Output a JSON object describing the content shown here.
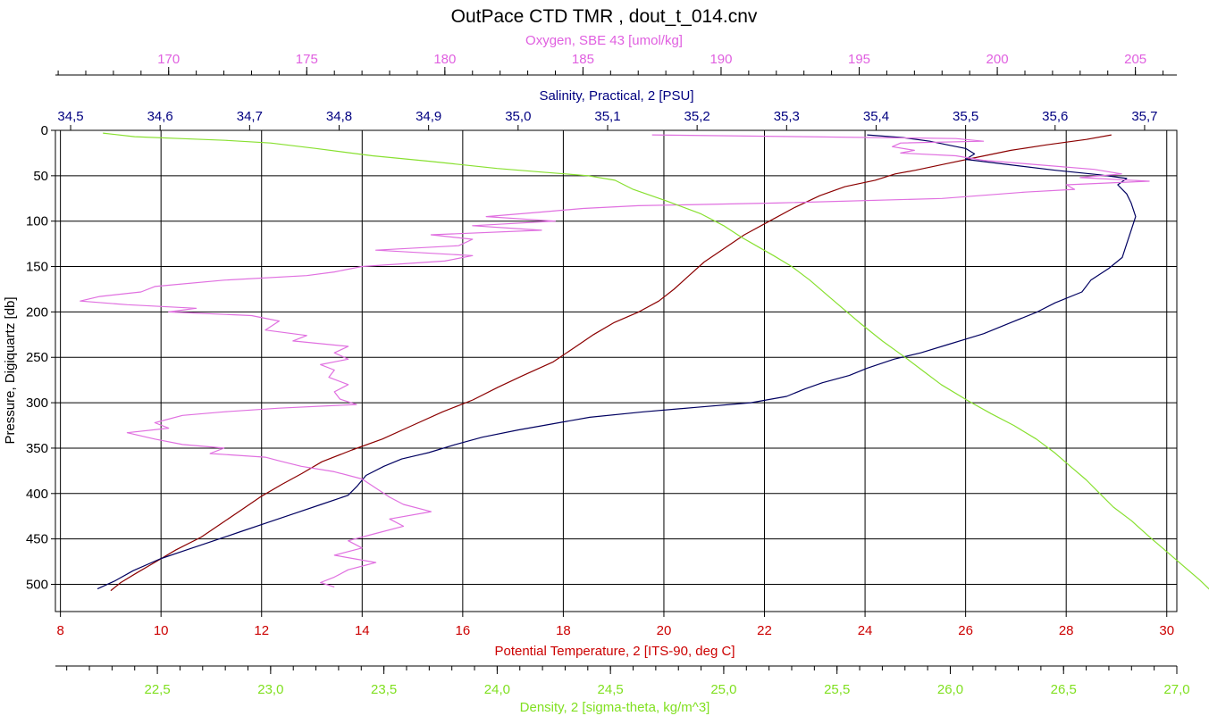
{
  "chart_data": {
    "type": "line",
    "title": "OutPace CTD TMR , dout_t_014.cnv",
    "ylabel": "Pressure, Digiquartz [db]",
    "ylim": [
      530,
      0
    ],
    "yticks": [
      0,
      50,
      100,
      150,
      200,
      250,
      300,
      350,
      400,
      450,
      500
    ],
    "ytick_labels": [
      "0",
      "50",
      "100",
      "150",
      "200",
      "250",
      "300",
      "350",
      "400",
      "450",
      "500"
    ],
    "grid": true,
    "axes": {
      "oxygen": {
        "label": "Oxygen, SBE 43 [umol/kg]",
        "color": "#e060e0",
        "range": [
          165.9,
          206.5
        ],
        "ticks": [
          170,
          175,
          180,
          185,
          190,
          195,
          200,
          205
        ],
        "tick_labels": [
          "170",
          "175",
          "180",
          "185",
          "190",
          "195",
          "200",
          "205"
        ],
        "minor_step": 1
      },
      "salinity": {
        "label": "Salinity, Practical, 2 [PSU]",
        "color": "#000080",
        "range": [
          34.483,
          35.736
        ],
        "ticks": [
          34.5,
          34.6,
          34.7,
          34.8,
          34.9,
          35.0,
          35.1,
          35.2,
          35.3,
          35.4,
          35.5,
          35.6,
          35.7
        ],
        "tick_labels": [
          "34,5",
          "34,6",
          "34,7",
          "34,8",
          "34,9",
          "35,0",
          "35,1",
          "35,2",
          "35,3",
          "35,4",
          "35,5",
          "35,6",
          "35,7"
        ]
      },
      "temperature": {
        "label": "Potential Temperature, 2 [ITS-90, deg C]",
        "color": "#cc0000",
        "range": [
          7.9,
          30.2
        ],
        "ticks": [
          8,
          10,
          12,
          14,
          16,
          18,
          20,
          22,
          24,
          26,
          28,
          30
        ],
        "tick_labels": [
          "8",
          "10",
          "12",
          "14",
          "16",
          "18",
          "20",
          "22",
          "24",
          "26",
          "28",
          "30"
        ]
      },
      "density": {
        "label": "Density, 2 [sigma-theta, kg/m^3]",
        "color": "#80e020",
        "range": [
          22.05,
          27.0
        ],
        "ticks": [
          22.5,
          23.0,
          23.5,
          24.0,
          24.5,
          25.0,
          25.5,
          26.0,
          26.5,
          27.0
        ],
        "tick_labels": [
          "22,5",
          "23,0",
          "23,5",
          "24,0",
          "24,5",
          "25,0",
          "25,5",
          "26,0",
          "26,5",
          "27,0"
        ],
        "minor_step": 0.1
      }
    },
    "series": [
      {
        "name": "Potential Temperature, 2 [ITS-90, deg C]",
        "axis": "temperature",
        "color": "#8b0000",
        "points": [
          [
            28.9,
            5
          ],
          [
            28.4,
            10
          ],
          [
            27.6,
            16
          ],
          [
            26.9,
            22
          ],
          [
            26.2,
            30
          ],
          [
            25.6,
            37
          ],
          [
            25.0,
            44
          ],
          [
            24.6,
            48
          ],
          [
            24.2,
            55
          ],
          [
            23.6,
            62
          ],
          [
            23.1,
            72
          ],
          [
            22.6,
            85
          ],
          [
            22.1,
            100
          ],
          [
            21.6,
            115
          ],
          [
            21.2,
            130
          ],
          [
            20.8,
            145
          ],
          [
            20.5,
            160
          ],
          [
            20.2,
            175
          ],
          [
            19.9,
            188
          ],
          [
            19.5,
            200
          ],
          [
            19.0,
            212
          ],
          [
            18.6,
            225
          ],
          [
            18.2,
            240
          ],
          [
            17.8,
            255
          ],
          [
            17.2,
            270
          ],
          [
            16.7,
            283
          ],
          [
            16.2,
            297
          ],
          [
            15.6,
            310
          ],
          [
            15.0,
            325
          ],
          [
            14.4,
            340
          ],
          [
            13.8,
            352
          ],
          [
            13.2,
            365
          ],
          [
            12.8,
            378
          ],
          [
            12.4,
            390
          ],
          [
            12.0,
            403
          ],
          [
            11.6,
            418
          ],
          [
            11.2,
            433
          ],
          [
            10.8,
            448
          ],
          [
            10.3,
            462
          ],
          [
            9.9,
            475
          ],
          [
            9.5,
            488
          ],
          [
            9.2,
            498
          ],
          [
            9.0,
            507
          ]
        ]
      },
      {
        "name": "Salinity, Practical, 2 [PSU]",
        "axis": "salinity",
        "color": "#000060",
        "points": [
          [
            35.39,
            5
          ],
          [
            35.43,
            8
          ],
          [
            35.46,
            12
          ],
          [
            35.48,
            16
          ],
          [
            35.5,
            20
          ],
          [
            35.51,
            26
          ],
          [
            35.5,
            32
          ],
          [
            35.55,
            38
          ],
          [
            35.6,
            44
          ],
          [
            35.65,
            49
          ],
          [
            35.68,
            53
          ],
          [
            35.67,
            60
          ],
          [
            35.68,
            70
          ],
          [
            35.685,
            80
          ],
          [
            35.69,
            95
          ],
          [
            35.685,
            110
          ],
          [
            35.68,
            125
          ],
          [
            35.675,
            140
          ],
          [
            35.66,
            152
          ],
          [
            35.64,
            165
          ],
          [
            35.63,
            178
          ],
          [
            35.6,
            190
          ],
          [
            35.58,
            200
          ],
          [
            35.55,
            212
          ],
          [
            35.52,
            224
          ],
          [
            35.48,
            236
          ],
          [
            35.45,
            245
          ],
          [
            35.42,
            252
          ],
          [
            35.39,
            262
          ],
          [
            35.37,
            270
          ],
          [
            35.34,
            278
          ],
          [
            35.32,
            285
          ],
          [
            35.3,
            293
          ],
          [
            35.26,
            300
          ],
          [
            35.2,
            305
          ],
          [
            35.14,
            310
          ],
          [
            35.08,
            316
          ],
          [
            35.04,
            323
          ],
          [
            35.0,
            330
          ],
          [
            34.96,
            338
          ],
          [
            34.93,
            346
          ],
          [
            34.9,
            355
          ],
          [
            34.87,
            362
          ],
          [
            34.85,
            370
          ],
          [
            34.83,
            380
          ],
          [
            34.82,
            392
          ],
          [
            34.81,
            402
          ],
          [
            34.78,
            412
          ],
          [
            34.75,
            422
          ],
          [
            34.72,
            432
          ],
          [
            34.69,
            442
          ],
          [
            34.66,
            452
          ],
          [
            34.63,
            462
          ],
          [
            34.6,
            472
          ],
          [
            34.57,
            485
          ],
          [
            34.55,
            496
          ],
          [
            34.53,
            505
          ]
        ]
      },
      {
        "name": "Oxygen, SBE 43 [umol/kg]",
        "axis": "oxygen",
        "color": "#e070e0",
        "points": [
          [
            187.5,
            5
          ],
          [
            193,
            7
          ],
          [
            198.5,
            9
          ],
          [
            199.5,
            12
          ],
          [
            196.5,
            14
          ],
          [
            196.2,
            18
          ],
          [
            197.0,
            22
          ],
          [
            196.5,
            25
          ],
          [
            198.5,
            28
          ],
          [
            199.5,
            33
          ],
          [
            201.5,
            38
          ],
          [
            203.5,
            43
          ],
          [
            204.5,
            48
          ],
          [
            203.0,
            52
          ],
          [
            205.5,
            56
          ],
          [
            202.5,
            60
          ],
          [
            202.8,
            65
          ],
          [
            201.0,
            68
          ],
          [
            198.0,
            75
          ],
          [
            192.0,
            80
          ],
          [
            187.0,
            83
          ],
          [
            185.0,
            86
          ],
          [
            183.5,
            90
          ],
          [
            181.5,
            95
          ],
          [
            184.0,
            100
          ],
          [
            181.0,
            105
          ],
          [
            183.5,
            110
          ],
          [
            179.5,
            115
          ],
          [
            181.0,
            120
          ],
          [
            180.5,
            127
          ],
          [
            177.5,
            132
          ],
          [
            181.0,
            138
          ],
          [
            180.0,
            144
          ],
          [
            177.0,
            150
          ],
          [
            176.0,
            156
          ],
          [
            175.0,
            160
          ],
          [
            172.0,
            165
          ],
          [
            169.5,
            172
          ],
          [
            169.0,
            178
          ],
          [
            167.5,
            183
          ],
          [
            166.8,
            188
          ],
          [
            168.5,
            192
          ],
          [
            171.0,
            196
          ],
          [
            170.0,
            200
          ],
          [
            173.0,
            204
          ],
          [
            174.0,
            210
          ],
          [
            173.5,
            220
          ],
          [
            175.0,
            226
          ],
          [
            174.5,
            232
          ],
          [
            176.5,
            238
          ],
          [
            176.0,
            245
          ],
          [
            176.5,
            252
          ],
          [
            175.5,
            258
          ],
          [
            176.0,
            264
          ],
          [
            175.8,
            272
          ],
          [
            176.5,
            280
          ],
          [
            176.0,
            288
          ],
          [
            176.2,
            296
          ],
          [
            176.8,
            302
          ],
          [
            174.0,
            306
          ],
          [
            172.0,
            310
          ],
          [
            170.5,
            314
          ],
          [
            169.5,
            322
          ],
          [
            170.0,
            328
          ],
          [
            168.5,
            333
          ],
          [
            169.5,
            340
          ],
          [
            170.5,
            346
          ],
          [
            172.0,
            350
          ],
          [
            171.5,
            356
          ],
          [
            173.5,
            360
          ],
          [
            174.0,
            364
          ],
          [
            174.8,
            370
          ],
          [
            176.0,
            376
          ],
          [
            177.0,
            384
          ],
          [
            177.5,
            394
          ],
          [
            178.0,
            404
          ],
          [
            178.5,
            412
          ],
          [
            179.5,
            420
          ],
          [
            178.0,
            428
          ],
          [
            178.5,
            436
          ],
          [
            177.5,
            444
          ],
          [
            176.5,
            452
          ],
          [
            177.0,
            460
          ],
          [
            176.0,
            468
          ],
          [
            177.5,
            476
          ],
          [
            176.5,
            484
          ],
          [
            176.0,
            492
          ],
          [
            175.5,
            498
          ],
          [
            176.0,
            503
          ]
        ]
      },
      {
        "name": "Density, 2 [sigma-theta, kg/m^3]",
        "axis": "density",
        "color": "#88e030",
        "points": [
          [
            22.26,
            3
          ],
          [
            22.4,
            7
          ],
          [
            22.6,
            9
          ],
          [
            22.8,
            11
          ],
          [
            23.0,
            14
          ],
          [
            23.2,
            20
          ],
          [
            23.45,
            28
          ],
          [
            23.7,
            34
          ],
          [
            24.0,
            42
          ],
          [
            24.2,
            46
          ],
          [
            24.4,
            50
          ],
          [
            24.52,
            55
          ],
          [
            24.6,
            65
          ],
          [
            24.75,
            78
          ],
          [
            24.9,
            92
          ],
          [
            25.0,
            105
          ],
          [
            25.08,
            118
          ],
          [
            25.15,
            128
          ],
          [
            25.22,
            138
          ],
          [
            25.3,
            150
          ],
          [
            25.38,
            165
          ],
          [
            25.45,
            180
          ],
          [
            25.52,
            195
          ],
          [
            25.6,
            212
          ],
          [
            25.7,
            232
          ],
          [
            25.8,
            250
          ],
          [
            25.88,
            265
          ],
          [
            25.96,
            280
          ],
          [
            26.08,
            298
          ],
          [
            26.18,
            312
          ],
          [
            26.28,
            325
          ],
          [
            26.38,
            340
          ],
          [
            26.46,
            355
          ],
          [
            26.53,
            370
          ],
          [
            26.6,
            385
          ],
          [
            26.66,
            400
          ],
          [
            26.72,
            415
          ],
          [
            26.8,
            430
          ],
          [
            26.88,
            448
          ],
          [
            26.96,
            465
          ],
          [
            27.03,
            480
          ],
          [
            27.1,
            495
          ],
          [
            27.15,
            507
          ]
        ]
      }
    ]
  }
}
